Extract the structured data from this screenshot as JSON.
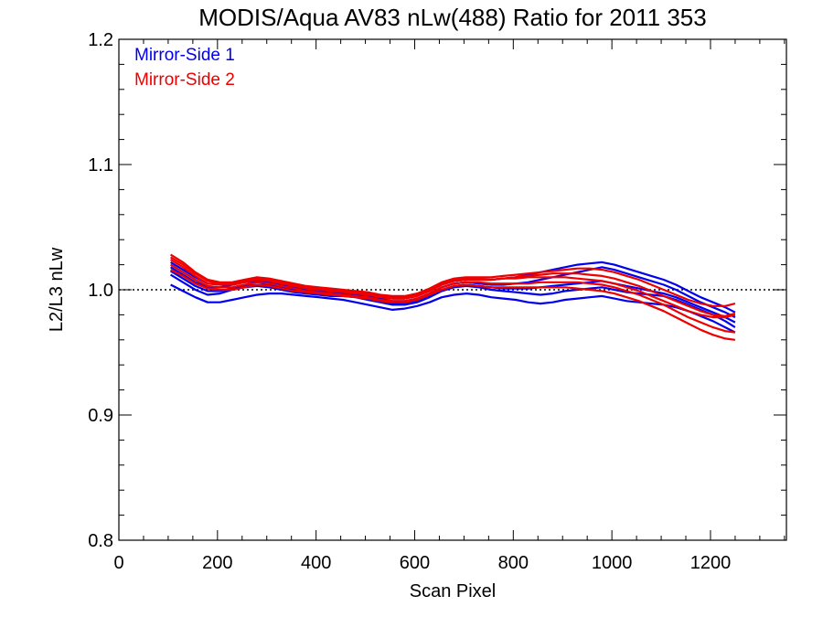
{
  "chart_data": {
    "type": "line",
    "title": "MODIS/Aqua AV83 nLw(488) Ratio for 2011 353",
    "xlabel": "Scan Pixel",
    "ylabel": "L2/L3 nLw",
    "xlim": [
      0,
      1354
    ],
    "ylim": [
      0.8,
      1.2
    ],
    "x_ticks": [
      0,
      200,
      400,
      600,
      800,
      1000,
      1200
    ],
    "x_tick_labels": [
      "0",
      "200",
      "400",
      "600",
      "800",
      "1000",
      "1200"
    ],
    "y_ticks": [
      0.8,
      0.9,
      1.0,
      1.1,
      1.2
    ],
    "y_tick_labels": [
      "0.8",
      "0.9",
      "1.0",
      "1.1",
      "1.2"
    ],
    "reference_line": {
      "y": 1.0,
      "style": "dotted",
      "color": "#000000"
    },
    "legend_position": "top-left",
    "x": [
      105,
      130,
      155,
      180,
      205,
      230,
      255,
      280,
      305,
      330,
      355,
      380,
      405,
      430,
      455,
      480,
      505,
      530,
      555,
      580,
      605,
      630,
      655,
      680,
      705,
      730,
      755,
      780,
      805,
      830,
      855,
      880,
      905,
      930,
      955,
      980,
      1005,
      1030,
      1055,
      1080,
      1105,
      1130,
      1155,
      1180,
      1205,
      1230,
      1250
    ],
    "series": [
      {
        "name": "Mirror-Side 1",
        "color": "#0000ee",
        "lines": [
          [
            1.004,
            0.999,
            0.994,
            0.99,
            0.99,
            0.992,
            0.994,
            0.996,
            0.997,
            0.997,
            0.996,
            0.995,
            0.994,
            0.993,
            0.992,
            0.99,
            0.988,
            0.986,
            0.984,
            0.985,
            0.987,
            0.99,
            0.994,
            0.996,
            0.997,
            0.996,
            0.994,
            0.993,
            0.992,
            0.99,
            0.989,
            0.99,
            0.992,
            0.993,
            0.994,
            0.995,
            0.993,
            0.991,
            0.99,
            0.989,
            0.988,
            0.986,
            0.983,
            0.979,
            0.975,
            0.97,
            0.966
          ],
          [
            1.012,
            1.006,
            1.0,
            0.996,
            0.997,
            1.0,
            1.002,
            1.003,
            1.002,
            1.0,
            0.998,
            0.997,
            0.996,
            0.995,
            0.995,
            0.994,
            0.992,
            0.99,
            0.988,
            0.988,
            0.99,
            0.994,
            0.999,
            1.002,
            1.003,
            1.002,
            1.0,
            0.999,
            0.998,
            0.997,
            0.996,
            0.997,
            0.999,
            1.0,
            1.001,
            1.002,
            1.0,
            0.998,
            0.997,
            0.996,
            0.995,
            0.992,
            0.988,
            0.984,
            0.98,
            0.975,
            0.97
          ],
          [
            1.018,
            1.012,
            1.006,
            1.002,
            1.002,
            1.004,
            1.006,
            1.007,
            1.006,
            1.004,
            1.002,
            1.0,
            0.999,
            0.998,
            0.997,
            0.996,
            0.995,
            0.993,
            0.991,
            0.991,
            0.993,
            0.997,
            1.002,
            1.005,
            1.006,
            1.005,
            1.004,
            1.004,
            1.005,
            1.006,
            1.008,
            1.01,
            1.012,
            1.014,
            1.016,
            1.018,
            1.016,
            1.013,
            1.01,
            1.007,
            1.004,
            1.0,
            0.995,
            0.99,
            0.986,
            0.982,
            0.978
          ],
          [
            1.022,
            1.016,
            1.01,
            1.005,
            1.004,
            1.005,
            1.007,
            1.008,
            1.008,
            1.006,
            1.004,
            1.002,
            1.001,
            1.0,
            0.999,
            0.998,
            0.997,
            0.995,
            0.993,
            0.993,
            0.995,
            0.999,
            1.004,
            1.007,
            1.008,
            1.008,
            1.008,
            1.009,
            1.01,
            1.012,
            1.014,
            1.016,
            1.018,
            1.02,
            1.021,
            1.022,
            1.02,
            1.017,
            1.014,
            1.011,
            1.008,
            1.004,
            0.999,
            0.994,
            0.99,
            0.986,
            0.982
          ],
          [
            1.015,
            1.009,
            1.003,
            0.999,
            0.999,
            1.001,
            1.003,
            1.004,
            1.004,
            1.002,
            1.0,
            0.999,
            0.998,
            0.997,
            0.996,
            0.995,
            0.993,
            0.991,
            0.989,
            0.989,
            0.991,
            0.995,
            1.0,
            1.003,
            1.004,
            1.003,
            1.002,
            1.001,
            1.001,
            1.001,
            1.002,
            1.003,
            1.004,
            1.005,
            1.006,
            1.007,
            1.005,
            1.003,
            1.001,
            0.999,
            0.997,
            0.994,
            0.99,
            0.986,
            0.982,
            0.978,
            0.974
          ]
        ]
      },
      {
        "name": "Mirror-Side 2",
        "color": "#ee0000",
        "lines": [
          [
            1.028,
            1.022,
            1.014,
            1.008,
            1.006,
            1.006,
            1.008,
            1.01,
            1.009,
            1.007,
            1.005,
            1.003,
            1.002,
            1.001,
            1.0,
            0.999,
            0.998,
            0.996,
            0.995,
            0.995,
            0.997,
            1.001,
            1.006,
            1.009,
            1.01,
            1.01,
            1.01,
            1.011,
            1.012,
            1.013,
            1.014,
            1.015,
            1.016,
            1.017,
            1.017,
            1.016,
            1.014,
            1.011,
            1.008,
            1.004,
            1.0,
            0.996,
            0.992,
            0.989,
            0.987,
            0.987,
            0.989
          ],
          [
            1.024,
            1.018,
            1.011,
            1.005,
            1.004,
            1.004,
            1.006,
            1.008,
            1.007,
            1.005,
            1.003,
            1.001,
            1.0,
            0.999,
            0.998,
            0.997,
            0.996,
            0.994,
            0.993,
            0.993,
            0.995,
            0.999,
            1.004,
            1.007,
            1.008,
            1.008,
            1.008,
            1.009,
            1.01,
            1.011,
            1.012,
            1.013,
            1.013,
            1.013,
            1.012,
            1.011,
            1.009,
            1.006,
            1.003,
            0.999,
            0.995,
            0.991,
            0.987,
            0.983,
            0.98,
            0.979,
            0.981
          ],
          [
            1.02,
            1.014,
            1.008,
            1.003,
            1.002,
            1.002,
            1.004,
            1.006,
            1.005,
            1.003,
            1.001,
            0.999,
            0.998,
            0.997,
            0.996,
            0.995,
            0.994,
            0.992,
            0.991,
            0.991,
            0.993,
            0.997,
            1.002,
            1.005,
            1.006,
            1.006,
            1.005,
            1.005,
            1.005,
            1.005,
            1.006,
            1.006,
            1.006,
            1.006,
            1.005,
            1.004,
            1.002,
            0.999,
            0.996,
            0.992,
            0.988,
            0.983,
            0.978,
            0.974,
            0.97,
            0.967,
            0.966
          ],
          [
            1.016,
            1.011,
            1.005,
            1.001,
            1.0,
            1.0,
            1.002,
            1.004,
            1.003,
            1.001,
            0.999,
            0.998,
            0.997,
            0.996,
            0.995,
            0.994,
            0.993,
            0.991,
            0.99,
            0.99,
            0.992,
            0.996,
            1.0,
            1.003,
            1.004,
            1.003,
            1.002,
            1.002,
            1.002,
            1.002,
            1.002,
            1.002,
            1.002,
            1.001,
            1.0,
            0.999,
            0.997,
            0.994,
            0.991,
            0.987,
            0.983,
            0.978,
            0.973,
            0.968,
            0.964,
            0.961,
            0.96
          ],
          [
            1.026,
            1.02,
            1.013,
            1.007,
            1.005,
            1.005,
            1.007,
            1.009,
            1.008,
            1.006,
            1.004,
            1.002,
            1.001,
            1.0,
            0.999,
            0.998,
            0.997,
            0.995,
            0.994,
            0.994,
            0.996,
            1.0,
            1.005,
            1.008,
            1.009,
            1.009,
            1.008,
            1.009,
            1.009,
            1.01,
            1.01,
            1.01,
            1.01,
            1.009,
            1.008,
            1.007,
            1.005,
            1.002,
            0.999,
            0.995,
            0.991,
            0.987,
            0.983,
            0.98,
            0.978,
            0.978,
            0.98
          ]
        ]
      }
    ]
  }
}
